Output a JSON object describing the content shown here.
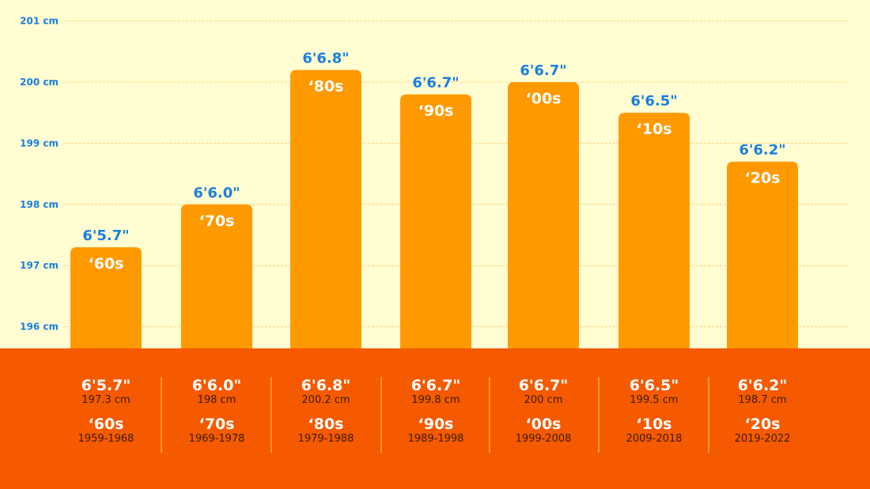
{
  "chart_data": {
    "type": "bar",
    "categories": [
      "'60s",
      "'70s",
      "'80s",
      "'90s",
      "'00s",
      "'10s",
      "'20s"
    ],
    "values": [
      197.3,
      198,
      200.2,
      199.8,
      200,
      199.5,
      198.7
    ],
    "imperial_labels": [
      "6'5.7\"",
      "6'6.0\"",
      "6'6.8\"",
      "6'6.7\"",
      "6'6.7\"",
      "6'6.5\"",
      "6'6.2\""
    ],
    "cm_labels": [
      "197.3 cm",
      "198 cm",
      "200.2 cm",
      "199.8 cm",
      "200 cm",
      "199.5 cm",
      "198.7 cm"
    ],
    "year_ranges": [
      "1959-1968",
      "1969-1978",
      "1979-1988",
      "1989-1998",
      "1999-2008",
      "2009-2018",
      "2019-2022"
    ],
    "y_ticks": [
      "196 cm",
      "197 cm",
      "198 cm",
      "199 cm",
      "200 cm",
      "201 cm"
    ],
    "ylim": [
      195.65,
      201
    ],
    "grid": true,
    "colors": {
      "background": "#FFFDD1",
      "bar": "#FF9900",
      "panel": "#F55A00",
      "label": "#1A7FE0",
      "grid": "#FFD27A"
    }
  }
}
